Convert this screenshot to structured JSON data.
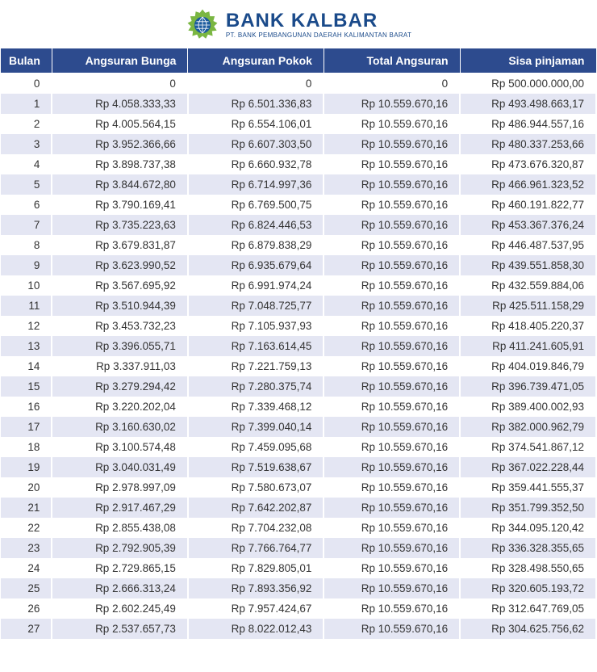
{
  "brand": {
    "title": "BANK KALBAR",
    "subtitle": "PT. BANK PEMBANGUNAN DAERAH KALIMANTAN BARAT"
  },
  "logo": {
    "outer_color": "#7ab642",
    "inner_color": "#1a5a9e",
    "grid_color": "#ffffff"
  },
  "table": {
    "header_bg": "#2d4b8e",
    "header_fg": "#ffffff",
    "row_odd_bg": "#ffffff",
    "row_even_bg": "#e4e6f3",
    "text_color": "#333333",
    "columns": [
      "Bulan",
      "Angsuran Bunga",
      "Angsuran Pokok",
      "Total Angsuran",
      "Sisa pinjaman"
    ],
    "rows": [
      [
        "0",
        "0",
        "0",
        "0",
        "Rp 500.000.000,00"
      ],
      [
        "1",
        "Rp 4.058.333,33",
        "Rp 6.501.336,83",
        "Rp 10.559.670,16",
        "Rp 493.498.663,17"
      ],
      [
        "2",
        "Rp 4.005.564,15",
        "Rp 6.554.106,01",
        "Rp 10.559.670,16",
        "Rp 486.944.557,16"
      ],
      [
        "3",
        "Rp 3.952.366,66",
        "Rp 6.607.303,50",
        "Rp 10.559.670,16",
        "Rp 480.337.253,66"
      ],
      [
        "4",
        "Rp 3.898.737,38",
        "Rp 6.660.932,78",
        "Rp 10.559.670,16",
        "Rp 473.676.320,87"
      ],
      [
        "5",
        "Rp 3.844.672,80",
        "Rp 6.714.997,36",
        "Rp 10.559.670,16",
        "Rp 466.961.323,52"
      ],
      [
        "6",
        "Rp 3.790.169,41",
        "Rp 6.769.500,75",
        "Rp 10.559.670,16",
        "Rp 460.191.822,77"
      ],
      [
        "7",
        "Rp 3.735.223,63",
        "Rp 6.824.446,53",
        "Rp 10.559.670,16",
        "Rp 453.367.376,24"
      ],
      [
        "8",
        "Rp 3.679.831,87",
        "Rp 6.879.838,29",
        "Rp 10.559.670,16",
        "Rp 446.487.537,95"
      ],
      [
        "9",
        "Rp 3.623.990,52",
        "Rp 6.935.679,64",
        "Rp 10.559.670,16",
        "Rp 439.551.858,30"
      ],
      [
        "10",
        "Rp 3.567.695,92",
        "Rp 6.991.974,24",
        "Rp 10.559.670,16",
        "Rp 432.559.884,06"
      ],
      [
        "11",
        "Rp 3.510.944,39",
        "Rp 7.048.725,77",
        "Rp 10.559.670,16",
        "Rp 425.511.158,29"
      ],
      [
        "12",
        "Rp 3.453.732,23",
        "Rp 7.105.937,93",
        "Rp 10.559.670,16",
        "Rp 418.405.220,37"
      ],
      [
        "13",
        "Rp 3.396.055,71",
        "Rp 7.163.614,45",
        "Rp 10.559.670,16",
        "Rp 411.241.605,91"
      ],
      [
        "14",
        "Rp 3.337.911,03",
        "Rp 7.221.759,13",
        "Rp 10.559.670,16",
        "Rp 404.019.846,79"
      ],
      [
        "15",
        "Rp 3.279.294,42",
        "Rp 7.280.375,74",
        "Rp 10.559.670,16",
        "Rp 396.739.471,05"
      ],
      [
        "16",
        "Rp 3.220.202,04",
        "Rp 7.339.468,12",
        "Rp 10.559.670,16",
        "Rp 389.400.002,93"
      ],
      [
        "17",
        "Rp 3.160.630,02",
        "Rp 7.399.040,14",
        "Rp 10.559.670,16",
        "Rp 382.000.962,79"
      ],
      [
        "18",
        "Rp 3.100.574,48",
        "Rp 7.459.095,68",
        "Rp 10.559.670,16",
        "Rp 374.541.867,12"
      ],
      [
        "19",
        "Rp 3.040.031,49",
        "Rp 7.519.638,67",
        "Rp 10.559.670,16",
        "Rp 367.022.228,44"
      ],
      [
        "20",
        "Rp 2.978.997,09",
        "Rp 7.580.673,07",
        "Rp 10.559.670,16",
        "Rp 359.441.555,37"
      ],
      [
        "21",
        "Rp 2.917.467,29",
        "Rp 7.642.202,87",
        "Rp 10.559.670,16",
        "Rp 351.799.352,50"
      ],
      [
        "22",
        "Rp 2.855.438,08",
        "Rp 7.704.232,08",
        "Rp 10.559.670,16",
        "Rp 344.095.120,42"
      ],
      [
        "23",
        "Rp 2.792.905,39",
        "Rp 7.766.764,77",
        "Rp 10.559.670,16",
        "Rp 336.328.355,65"
      ],
      [
        "24",
        "Rp 2.729.865,15",
        "Rp 7.829.805,01",
        "Rp 10.559.670,16",
        "Rp 328.498.550,65"
      ],
      [
        "25",
        "Rp 2.666.313,24",
        "Rp 7.893.356,92",
        "Rp 10.559.670,16",
        "Rp 320.605.193,72"
      ],
      [
        "26",
        "Rp 2.602.245,49",
        "Rp 7.957.424,67",
        "Rp 10.559.670,16",
        "Rp 312.647.769,05"
      ],
      [
        "27",
        "Rp 2.537.657,73",
        "Rp 8.022.012,43",
        "Rp 10.559.670,16",
        "Rp 304.625.756,62"
      ]
    ]
  }
}
